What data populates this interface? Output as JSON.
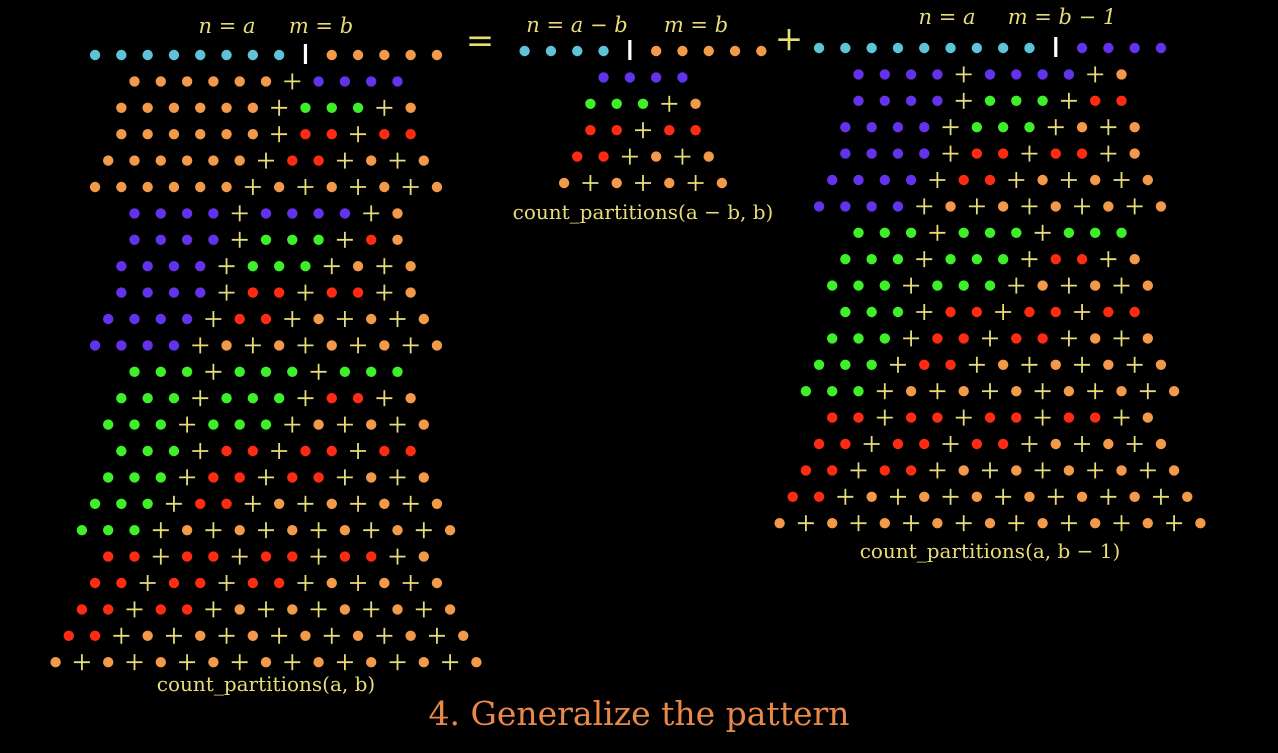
{
  "title": "4. Generalize the pattern",
  "operators": {
    "equals": "=",
    "plus": "+"
  },
  "colors": {
    "c": "#5ec3d6",
    "o": "#f2994a",
    "p": "#6233ea",
    "g": "#3df029",
    "r": "#ff2a12",
    "plus": "#e8dc78",
    "bar": "#ffffff",
    "label": "#e8dc78"
  },
  "panels": [
    {
      "name": "left",
      "header": {
        "n": "n = a",
        "m": "m = b"
      },
      "caption": "count_partitions(a, b)",
      "rows": [
        "cccccccc|ooooo",
        "oooooo+pppp",
        "oooooo+ggg+o",
        "oooooo+rr+rr",
        "oooooo+rr+o+o",
        "oooooo+o+o+o+o",
        "pppp+pppp+o",
        "pppp+ggg+ro",
        "pppp+ggg+o+o",
        "pppp+rr+rr+o",
        "pppp+rr+o+o+o",
        "pppp+o+o+o+o+o",
        "ggg+ggg+ggg",
        "ggg+ggg+rr+o",
        "ggg+ggg+o+o+o",
        "ggg+rr+rr+rr",
        "ggg+rr+rr+o+o",
        "ggg+rr+o+o+o+o",
        "ggg+o+o+o+o+o+o",
        "rr+rr+rr+rr+o",
        "rr+rr+rr+o+o+o",
        "rr+rr+o+o+o+o+o",
        "rr+o+o+o+o+o+o+o",
        "o+o+o+o+o+o+o+o+o"
      ]
    },
    {
      "name": "middle",
      "header": {
        "n": "n = a − b",
        "m": "m = b"
      },
      "caption": "count_partitions(a − b, b)",
      "rows": [
        "cccc|ooooo",
        "pppp",
        "ggg+o",
        "rr+rr",
        "rr+o+o",
        "o+o+o+o"
      ]
    },
    {
      "name": "right",
      "header": {
        "n": "n = a",
        "m": "m = b − 1"
      },
      "caption": "count_partitions(a, b − 1)",
      "rows": [
        "ccccccccc|pppp",
        "pppp+pppp+o",
        "pppp+ggg+rr",
        "pppp+ggg+o+o",
        "pppp+rr+rr+o",
        "pppp+rr+o+o+o",
        "pppp+o+o+o+o+o",
        "ggg+ggg+ggg",
        "ggg+ggg+rr+o",
        "ggg+ggg+o+o+o",
        "ggg+rr+rr+rr",
        "ggg+rr+rr+o+o",
        "ggg+rr+o+o+o+o",
        "ggg+o+o+o+o+o+o",
        "rr+rr+rr+rr+o",
        "rr+rr+rr+o+o+o",
        "rr+rr+o+o+o+o+o",
        "rr+o+o+o+o+o+o+o",
        "o+o+o+o+o+o+o+o+o"
      ]
    }
  ]
}
